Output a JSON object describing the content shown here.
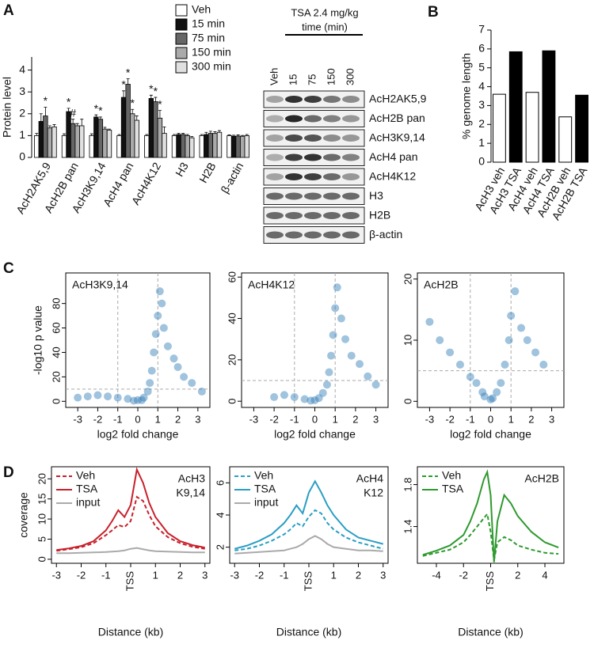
{
  "panel_labels": [
    "A",
    "B",
    "C",
    "D"
  ],
  "blot": {
    "treatment": "TSA 2.4 mg/kg",
    "time_label": "time (min)",
    "lanes": [
      "Veh",
      "15",
      "75",
      "150",
      "300"
    ],
    "rows": [
      "AcH2AK5,9",
      "AcH2B pan",
      "AcH3K9,14",
      "AcH4 pan",
      "AcH4K12",
      "H3",
      "H2B",
      "β-actin"
    ]
  },
  "chart_data": [
    {
      "type": "grouped_bar",
      "ylabel": "Protein level",
      "categories": [
        "AcH2AK5,9",
        "AcH2B pan",
        "AcH3K9,14",
        "AcH4 pan",
        "AcH4K12",
        "H3",
        "H2B",
        "β-actin"
      ],
      "series": [
        {
          "name": "Veh",
          "color": "#ffffff",
          "values": [
            1.0,
            1.0,
            1.0,
            1.0,
            1.0,
            1.0,
            1.0,
            1.0
          ],
          "errors": [
            0.1,
            0.08,
            0.08,
            0.05,
            0.05,
            0.05,
            0.05,
            0.03
          ]
        },
        {
          "name": "15 min",
          "color": "#111111",
          "values": [
            1.65,
            2.1,
            1.85,
            2.75,
            2.7,
            1.05,
            1.05,
            0.97
          ],
          "errors": [
            0.35,
            0.15,
            0.1,
            0.3,
            0.15,
            0.05,
            0.1,
            0.05
          ]
        },
        {
          "name": "75 min",
          "color": "#666666",
          "values": [
            1.9,
            1.55,
            1.75,
            3.35,
            2.55,
            1.05,
            1.1,
            0.98
          ],
          "errors": [
            0.4,
            0.2,
            0.1,
            0.25,
            0.2,
            0.06,
            0.1,
            0.05
          ]
        },
        {
          "name": "150 min",
          "color": "#aaaaaa",
          "values": [
            1.35,
            1.45,
            1.3,
            2.0,
            1.8,
            1.0,
            1.1,
            0.97
          ],
          "errors": [
            0.1,
            0.1,
            0.08,
            0.2,
            0.35,
            0.05,
            0.08,
            0.04
          ]
        },
        {
          "name": "300 min",
          "color": "#e0e0e0",
          "values": [
            1.4,
            1.45,
            1.25,
            1.7,
            1.1,
            0.9,
            1.15,
            1.0
          ],
          "errors": [
            0.1,
            0.3,
            0.05,
            0.2,
            0.3,
            0.06,
            0.08,
            0.05
          ]
        }
      ],
      "ylim": [
        0,
        4.6
      ],
      "yticks": [
        0,
        1,
        2,
        3,
        4
      ],
      "annotations": [
        {
          "text": "*",
          "category": 0,
          "series": 2
        },
        {
          "text": "*",
          "category": 1,
          "series": 1
        },
        {
          "text": "#",
          "category": 1,
          "series": 2
        },
        {
          "text": "*",
          "category": 2,
          "series": 1
        },
        {
          "text": "*",
          "category": 2,
          "series": 2
        },
        {
          "text": "*",
          "category": 3,
          "series": 1
        },
        {
          "text": "*",
          "category": 3,
          "series": 2
        },
        {
          "text": "*",
          "category": 3,
          "series": 3
        },
        {
          "text": "*",
          "category": 4,
          "series": 1
        },
        {
          "text": "*",
          "category": 4,
          "series": 2
        },
        {
          "text": "*",
          "category": 4,
          "series": 3
        }
      ]
    },
    {
      "type": "bar",
      "ylabel": "% genome length",
      "categories": [
        "AcH3 veh",
        "AcH3 TSA",
        "AcH4 veh",
        "AcH4 TSA",
        "AcH2B veh",
        "AcH2B TSA"
      ],
      "values": [
        3.6,
        5.85,
        3.7,
        5.9,
        2.4,
        3.55
      ],
      "colors": [
        "#ffffff",
        "#000000",
        "#ffffff",
        "#000000",
        "#ffffff",
        "#000000"
      ],
      "ylim": [
        0,
        7
      ],
      "yticks": [
        0,
        1,
        2,
        3,
        4,
        5,
        6,
        7
      ]
    },
    {
      "type": "scatter",
      "title": "AcH3K9,14",
      "xlabel": "log2 fold change",
      "ylabel": "-log10 p value",
      "color": "#2c7bb6",
      "x": [
        -3,
        -2.5,
        -2,
        -1.5,
        -1,
        -0.5,
        0,
        0.3,
        0.5,
        0.6,
        0.7,
        0.8,
        0.9,
        1,
        1.1,
        1.3,
        1.5,
        1.8,
        2,
        2.3,
        2.7,
        3.2,
        0.2,
        -0.2,
        1.2
      ],
      "y": [
        3,
        4,
        5,
        4,
        3,
        2,
        1,
        3,
        8,
        15,
        25,
        40,
        55,
        70,
        90,
        60,
        45,
        35,
        28,
        20,
        15,
        8,
        1,
        0.5,
        80
      ],
      "xlim": [
        -3.6,
        3.6
      ],
      "xticks": [
        -3,
        -2,
        -1,
        0,
        1,
        2,
        3
      ],
      "ylim": [
        -5,
        105
      ],
      "yticks": [
        0,
        20,
        40,
        60,
        80
      ],
      "hline": 10,
      "vlines": [
        -1,
        1
      ]
    },
    {
      "type": "scatter",
      "title": "AcH4K12",
      "xlabel": "log2 fold change",
      "color": "#2c7bb6",
      "x": [
        -2,
        -1.5,
        -1,
        -0.5,
        0,
        0.2,
        0.4,
        0.6,
        0.7,
        0.8,
        0.9,
        1,
        1.1,
        1.3,
        1.5,
        1.8,
        2.2,
        2.6,
        3,
        -0.2
      ],
      "y": [
        2,
        3,
        2,
        1,
        0.5,
        1.5,
        4,
        8,
        14,
        22,
        32,
        45,
        55,
        40,
        30,
        22,
        18,
        12,
        8,
        0.3
      ],
      "xlim": [
        -3.6,
        3.6
      ],
      "xticks": [
        -3,
        -2,
        -1,
        0,
        1,
        2,
        3
      ],
      "ylim": [
        -3,
        62
      ],
      "yticks": [
        0,
        20,
        40,
        60
      ],
      "hline": 10,
      "vlines": [
        -1,
        1
      ]
    },
    {
      "type": "scatter",
      "title": "AcH2B",
      "xlabel": "log2 fold change",
      "color": "#2c7bb6",
      "x": [
        -3,
        -2.5,
        -2,
        -1.5,
        -1,
        -0.7,
        -0.4,
        0,
        0.3,
        0.5,
        0.7,
        0.9,
        1,
        1.2,
        1.5,
        1.8,
        2.2,
        2.6,
        -0.3,
        0.1
      ],
      "y": [
        13,
        10,
        8,
        6,
        4,
        3,
        1.5,
        0.3,
        1.5,
        3,
        6,
        10,
        14,
        18,
        12,
        10,
        8,
        6,
        0.8,
        0.5
      ],
      "xlim": [
        -3.6,
        3.6
      ],
      "xticks": [
        -3,
        -2,
        -1,
        0,
        1,
        2,
        3
      ],
      "ylim": [
        -1,
        21
      ],
      "yticks": [
        0,
        10,
        20
      ],
      "hline": 5,
      "vlines": [
        -1,
        1
      ]
    },
    {
      "type": "line",
      "ylabel": "coverage",
      "xlabel": "Distance (kb)",
      "annotation": [
        "AcH3",
        "K9,14"
      ],
      "x": [
        -3,
        -2.5,
        -2,
        -1.5,
        -1,
        -0.75,
        -0.5,
        -0.25,
        0,
        0.25,
        0.5,
        0.75,
        1,
        1.5,
        2,
        2.5,
        3
      ],
      "series": [
        {
          "name": "Veh",
          "color": "#c8202a",
          "dash": true,
          "values": [
            2.1,
            2.5,
            3.0,
            4.0,
            6.0,
            7.2,
            8.5,
            8.0,
            9.5,
            15.5,
            14.5,
            11,
            8.2,
            5.5,
            4.0,
            3.1,
            2.6
          ]
        },
        {
          "name": "TSA",
          "color": "#c8202a",
          "dash": false,
          "values": [
            2.3,
            2.7,
            3.3,
            4.5,
            7.2,
            9.5,
            12.2,
            10.5,
            13.5,
            22.3,
            19,
            14,
            10.5,
            6.5,
            4.5,
            3.5,
            2.9
          ]
        },
        {
          "name": "input",
          "color": "#aaaaaa",
          "dash": false,
          "values": [
            1.5,
            1.5,
            1.6,
            1.7,
            1.8,
            1.9,
            2.0,
            2.2,
            2.6,
            2.8,
            2.5,
            2.2,
            2.0,
            1.9,
            1.8,
            1.7,
            1.7
          ]
        }
      ],
      "xlim": [
        -3.2,
        3.2
      ],
      "xticks": [
        -3,
        -2,
        -1,
        {
          "value": 0,
          "label": "TSS"
        },
        1,
        2,
        3
      ],
      "ylim": [
        -1,
        23
      ],
      "yticks": [
        0,
        5,
        10,
        15,
        20
      ]
    },
    {
      "type": "line",
      "xlabel": "Distance (kb)",
      "annotation": [
        "AcH4",
        "K12"
      ],
      "x": [
        -3,
        -2.5,
        -2,
        -1.5,
        -1,
        -0.75,
        -0.5,
        -0.25,
        0,
        0.25,
        0.5,
        0.75,
        1,
        1.5,
        2,
        2.5,
        3
      ],
      "series": [
        {
          "name": "Veh",
          "color": "#2a9ec4",
          "dash": true,
          "values": [
            1.8,
            1.9,
            2.1,
            2.4,
            2.8,
            3.1,
            3.5,
            3.3,
            3.9,
            4.3,
            4.1,
            3.5,
            3.1,
            2.6,
            2.3,
            2.1,
            1.9
          ]
        },
        {
          "name": "TSA",
          "color": "#2a9ec4",
          "dash": false,
          "values": [
            1.9,
            2.1,
            2.4,
            2.8,
            3.5,
            4.0,
            4.6,
            4.1,
            5.4,
            6.1,
            5.4,
            4.6,
            4.0,
            3.1,
            2.6,
            2.4,
            2.2
          ]
        },
        {
          "name": "input",
          "color": "#aaaaaa",
          "dash": false,
          "values": [
            1.6,
            1.65,
            1.7,
            1.75,
            1.8,
            1.9,
            2.0,
            2.2,
            2.5,
            2.7,
            2.5,
            2.2,
            2.0,
            1.9,
            1.8,
            1.8,
            1.75
          ]
        }
      ],
      "xlim": [
        -3.2,
        3.2
      ],
      "xticks": [
        -3,
        -2,
        -1,
        {
          "value": 0,
          "label": "TSS"
        },
        1,
        2,
        3
      ],
      "ylim": [
        1,
        7
      ],
      "yticks": [
        2,
        4,
        6
      ]
    },
    {
      "type": "line",
      "xlabel": "Distance (kb)",
      "annotation": [
        "AcH2B"
      ],
      "x": [
        -5,
        -4,
        -3,
        -2,
        -1.5,
        -1,
        -0.5,
        -0.25,
        0,
        0.25,
        0.5,
        1,
        1.5,
        2,
        3,
        4,
        5
      ],
      "series": [
        {
          "name": "Veh",
          "color": "#2e9a2e",
          "dash": true,
          "values": [
            1.12,
            1.15,
            1.18,
            1.25,
            1.32,
            1.4,
            1.48,
            1.52,
            1.35,
            1.08,
            1.25,
            1.3,
            1.27,
            1.22,
            1.18,
            1.15,
            1.14
          ]
        },
        {
          "name": "TSA",
          "color": "#2e9a2e",
          "dash": false,
          "values": [
            1.13,
            1.17,
            1.22,
            1.32,
            1.45,
            1.62,
            1.85,
            1.92,
            1.7,
            1.06,
            1.45,
            1.7,
            1.62,
            1.5,
            1.35,
            1.25,
            1.2
          ]
        }
      ],
      "xlim": [
        -5.4,
        5.4
      ],
      "xticks": [
        -4,
        -2,
        {
          "value": 0,
          "label": "TSS"
        },
        2,
        4
      ],
      "ylim": [
        1.05,
        1.97
      ],
      "yticks": [
        1.4,
        1.8
      ]
    }
  ]
}
